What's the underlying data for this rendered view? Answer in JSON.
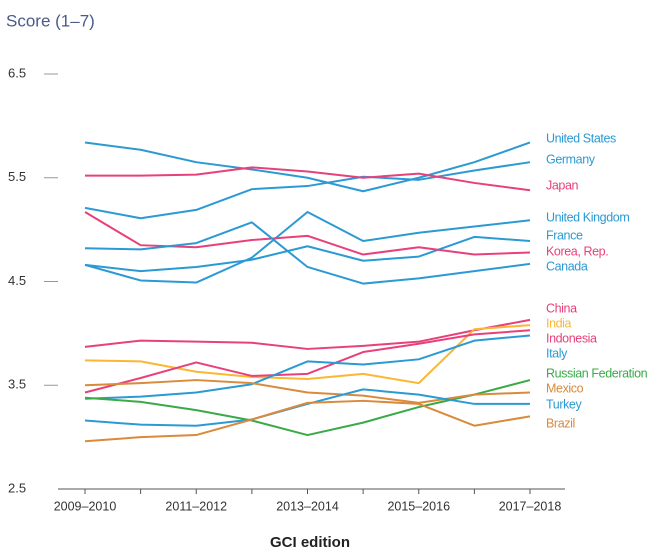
{
  "chart_data": {
    "type": "line",
    "y_axis_label": "Score (1–7)",
    "x_axis_label": "GCI edition",
    "categories": [
      "2009–2010",
      null,
      "2011–2012",
      null,
      "2013–2014",
      null,
      "2015–2016",
      null,
      "2017–2018"
    ],
    "ylim": [
      2.5,
      6.5
    ],
    "yticks": [
      6.5,
      5.5,
      4.5,
      3.5,
      2.5
    ],
    "series": [
      {
        "name": "United States",
        "color": "#2b9ad4",
        "values": [
          5.84,
          5.77,
          5.65,
          5.58,
          5.5,
          5.37,
          5.5,
          5.65,
          5.84
        ]
      },
      {
        "name": "Germany",
        "color": "#2b9ad4",
        "values": [
          5.21,
          5.11,
          5.19,
          5.39,
          5.42,
          5.51,
          5.48,
          5.57,
          5.65
        ]
      },
      {
        "name": "Japan",
        "color": "#e8407a",
        "values": [
          5.52,
          5.52,
          5.53,
          5.6,
          5.56,
          5.5,
          5.54,
          5.45,
          5.38
        ]
      },
      {
        "name": "United Kingdom",
        "color": "#2b9ad4",
        "values": [
          4.66,
          4.51,
          4.49,
          4.73,
          5.17,
          4.89,
          4.97,
          5.03,
          5.09
        ]
      },
      {
        "name": "France",
        "color": "#2b9ad4",
        "values": [
          4.66,
          4.6,
          4.64,
          4.71,
          4.84,
          4.7,
          4.74,
          4.93,
          4.89
        ]
      },
      {
        "name": "Korea, Rep.",
        "color": "#e8407a",
        "values": [
          5.17,
          4.85,
          4.83,
          4.9,
          4.94,
          4.76,
          4.83,
          4.76,
          4.78
        ]
      },
      {
        "name": "Canada",
        "color": "#2b9ad4",
        "values": [
          4.82,
          4.81,
          4.87,
          5.07,
          4.64,
          4.48,
          4.53,
          4.6,
          4.67
        ]
      },
      {
        "name": "China",
        "color": "#e8407a",
        "values": [
          3.87,
          3.93,
          3.92,
          3.91,
          3.85,
          3.88,
          3.92,
          4.03,
          4.13
        ]
      },
      {
        "name": "India",
        "color": "#fbb731",
        "values": [
          3.74,
          3.73,
          3.63,
          3.58,
          3.56,
          3.61,
          3.52,
          4.04,
          4.08
        ]
      },
      {
        "name": "Indonesia",
        "color": "#e8407a",
        "values": [
          3.43,
          3.57,
          3.72,
          3.59,
          3.61,
          3.82,
          3.9,
          3.99,
          4.03
        ]
      },
      {
        "name": "Italy",
        "color": "#2b9ad4",
        "values": [
          3.37,
          3.39,
          3.43,
          3.51,
          3.73,
          3.7,
          3.75,
          3.93,
          3.98
        ]
      },
      {
        "name": "Russian Federation",
        "color": "#3aaa48",
        "values": [
          3.38,
          3.34,
          3.26,
          3.16,
          3.02,
          3.14,
          3.29,
          3.41,
          3.55
        ]
      },
      {
        "name": "Mexico",
        "color": "#d98a3a",
        "values": [
          3.5,
          3.52,
          3.55,
          3.52,
          3.43,
          3.4,
          3.33,
          3.41,
          3.43
        ]
      },
      {
        "name": "Turkey",
        "color": "#2b9ad4",
        "values": [
          3.16,
          3.12,
          3.11,
          3.17,
          3.32,
          3.46,
          3.41,
          3.32,
          3.32
        ]
      },
      {
        "name": "Brazil",
        "color": "#d98a3a",
        "values": [
          2.96,
          3.0,
          3.02,
          3.17,
          3.33,
          3.35,
          3.32,
          3.11,
          3.2
        ]
      }
    ]
  }
}
